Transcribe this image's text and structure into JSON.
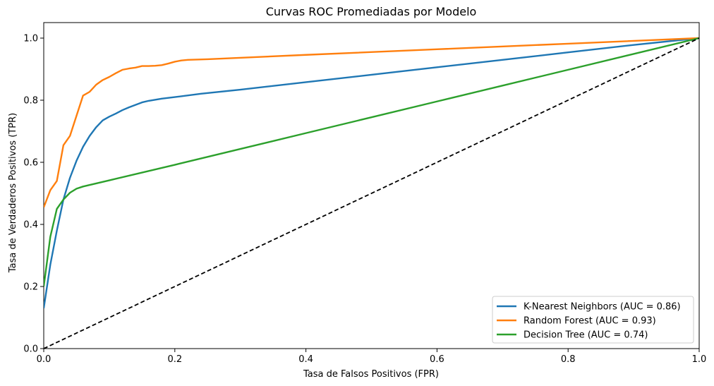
{
  "chart_data": {
    "type": "line",
    "title": "Curvas ROC Promediadas por Modelo",
    "xlabel": "Tasa de Falsos Positivos (FPR)",
    "ylabel": "Tasa de Verdaderos Positivos (TPR)",
    "xlim": [
      0,
      1
    ],
    "ylim": [
      0,
      1.05
    ],
    "xticks": [
      "0.0",
      "0.2",
      "0.4",
      "0.6",
      "0.8",
      "1.0"
    ],
    "yticks": [
      "0.0",
      "0.2",
      "0.4",
      "0.6",
      "0.8",
      "1.0"
    ],
    "grid": false,
    "legend_position": "lower-right",
    "series": [
      {
        "name": "K-Nearest Neighbors (AUC = 0.86)",
        "color": "#1f77b4",
        "x": [
          0.0,
          0.01,
          0.02,
          0.03,
          0.04,
          0.05,
          0.06,
          0.07,
          0.08,
          0.09,
          0.1,
          0.11,
          0.12,
          0.13,
          0.14,
          0.15,
          0.16,
          0.18,
          0.2,
          0.24,
          0.3,
          0.4,
          0.5,
          0.6,
          0.7,
          0.8,
          0.9,
          1.0
        ],
        "y": [
          0.13,
          0.27,
          0.38,
          0.48,
          0.55,
          0.605,
          0.65,
          0.685,
          0.713,
          0.735,
          0.747,
          0.757,
          0.768,
          0.777,
          0.785,
          0.793,
          0.798,
          0.805,
          0.81,
          0.821,
          0.834,
          0.858,
          0.882,
          0.906,
          0.93,
          0.954,
          0.978,
          1.0
        ]
      },
      {
        "name": "Random Forest (AUC = 0.93)",
        "color": "#ff7f0e",
        "x": [
          0.0,
          0.01,
          0.02,
          0.03,
          0.04,
          0.05,
          0.06,
          0.07,
          0.08,
          0.09,
          0.1,
          0.11,
          0.12,
          0.13,
          0.14,
          0.15,
          0.16,
          0.17,
          0.18,
          0.19,
          0.2,
          0.21,
          0.22,
          0.25,
          0.4,
          0.6,
          0.8,
          1.0
        ],
        "y": [
          0.455,
          0.51,
          0.54,
          0.655,
          0.685,
          0.75,
          0.815,
          0.827,
          0.85,
          0.865,
          0.875,
          0.887,
          0.898,
          0.902,
          0.905,
          0.91,
          0.91,
          0.911,
          0.913,
          0.918,
          0.924,
          0.928,
          0.93,
          0.932,
          0.946,
          0.964,
          0.982,
          1.0
        ]
      },
      {
        "name": "Decision Tree (AUC = 0.74)",
        "color": "#2ca02c",
        "x": [
          0.0,
          0.01,
          0.02,
          0.03,
          0.04,
          0.05,
          0.06,
          0.08,
          0.1,
          0.2,
          0.3,
          0.4,
          0.5,
          0.6,
          0.7,
          0.8,
          0.9,
          1.0
        ],
        "y": [
          0.2,
          0.36,
          0.45,
          0.48,
          0.502,
          0.515,
          0.522,
          0.532,
          0.542,
          0.592,
          0.643,
          0.694,
          0.745,
          0.796,
          0.847,
          0.898,
          0.949,
          1.0
        ]
      }
    ],
    "reference": {
      "color": "#000000",
      "x": [
        0,
        1
      ],
      "y": [
        0,
        1
      ]
    }
  }
}
